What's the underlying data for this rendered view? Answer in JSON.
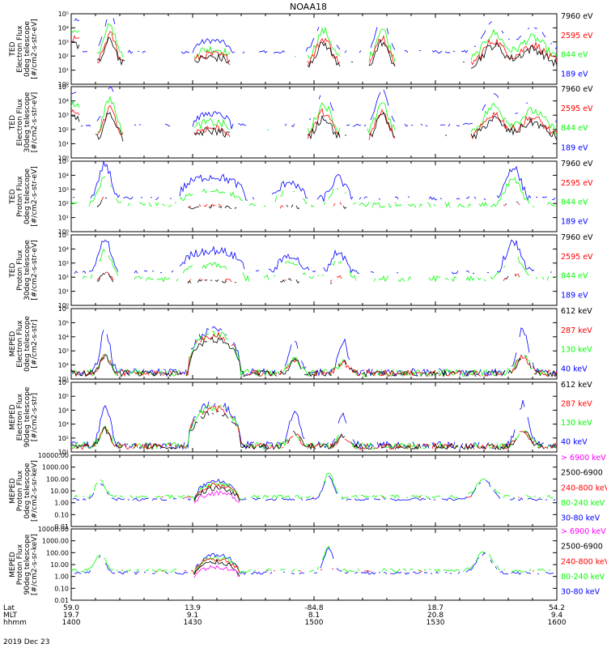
{
  "title": "NOAA18",
  "date": "2019 Dec 23",
  "footer": {
    "rows": [
      {
        "label": "Lat",
        "values": [
          "59.0",
          "13.9",
          "-84.8",
          "18.7",
          "54.2"
        ]
      },
      {
        "label": "MLT",
        "values": [
          "19.7",
          "9.1",
          "8.1",
          "20.8",
          "9.4"
        ]
      },
      {
        "label": "hhmm",
        "values": [
          "1400",
          "1430",
          "1500",
          "1530",
          "1600"
        ]
      }
    ]
  },
  "colors": {
    "blue": "#0000ff",
    "red": "#ff0000",
    "green": "#00ff00",
    "black": "#000000",
    "magenta": "#ff00ff"
  },
  "chart_data": [
    {
      "type": "line",
      "name": "ted-electron-0deg",
      "ylabel": [
        "TED",
        "Electron Flux",
        "0deg telescope",
        "[#/cm2-s-str-eV]"
      ],
      "scale": "log",
      "ylim": [
        1,
        100000
      ],
      "ticks": [
        "10⁰",
        "10¹",
        "10²",
        "10³",
        "10⁴",
        "10⁵"
      ],
      "legend": [
        {
          "text": "7960 eV",
          "color": "#000000"
        },
        {
          "text": "2595 eV",
          "color": "#ff0000"
        },
        {
          "text": "844 eV",
          "color": "#00ff00"
        },
        {
          "text": "189 eV",
          "color": "#0000ff"
        }
      ]
    },
    {
      "type": "line",
      "name": "ted-electron-30deg",
      "ylabel": [
        "TED",
        "Electron Flux",
        "30deg telescope",
        "[#/cm2-s-str-eV]"
      ],
      "scale": "log",
      "ylim": [
        1,
        100000
      ],
      "ticks": [
        "10⁰",
        "10¹",
        "10²",
        "10³",
        "10⁴",
        "10⁵"
      ],
      "legend": [
        {
          "text": "7960 eV",
          "color": "#000000"
        },
        {
          "text": "2595 eV",
          "color": "#ff0000"
        },
        {
          "text": "844 eV",
          "color": "#00ff00"
        },
        {
          "text": "189 eV",
          "color": "#0000ff"
        }
      ]
    },
    {
      "type": "line",
      "name": "ted-proton-0deg",
      "ylabel": [
        "TED",
        "Proton Flux",
        "0deg telescope",
        "[#/cm2-s-str-eV]"
      ],
      "scale": "log",
      "ylim": [
        1,
        100000
      ],
      "ticks": [
        "10⁰",
        "10¹",
        "10²",
        "10³",
        "10⁴",
        "10⁵"
      ],
      "legend": [
        {
          "text": "7960 eV",
          "color": "#000000"
        },
        {
          "text": "2595 eV",
          "color": "#ff0000"
        },
        {
          "text": "844 eV",
          "color": "#00ff00"
        },
        {
          "text": "189 eV",
          "color": "#0000ff"
        }
      ]
    },
    {
      "type": "line",
      "name": "ted-proton-30deg",
      "ylabel": [
        "TED",
        "Proton Flux",
        "30deg telescope",
        "[#/cm2-s-str-eV]"
      ],
      "scale": "log",
      "ylim": [
        1,
        100000
      ],
      "ticks": [
        "10⁰",
        "10¹",
        "10²",
        "10³",
        "10⁴",
        "10⁵"
      ],
      "legend": [
        {
          "text": "7960 eV",
          "color": "#000000"
        },
        {
          "text": "2595 eV",
          "color": "#ff0000"
        },
        {
          "text": "844 eV",
          "color": "#00ff00"
        },
        {
          "text": "189 eV",
          "color": "#0000ff"
        }
      ]
    },
    {
      "type": "line",
      "name": "meped-electron-0deg",
      "ylabel": [
        "MEPED",
        "Electron Flux",
        "0deg telescope",
        "[#/cm2-s-str]"
      ],
      "scale": "log",
      "ylim": [
        10,
        1000000
      ],
      "ticks": [
        "10¹",
        "10²",
        "10³",
        "10⁴",
        "10⁵",
        "10⁶"
      ],
      "legend": [
        {
          "text": "612 keV",
          "color": "#000000"
        },
        {
          "text": "287 keV",
          "color": "#ff0000"
        },
        {
          "text": "130 keV",
          "color": "#00ff00"
        },
        {
          "text": "40 keV",
          "color": "#0000ff"
        }
      ]
    },
    {
      "type": "line",
      "name": "meped-electron-90deg",
      "ylabel": [
        "MEPED",
        "Electron Flux",
        "90deg telescope",
        "[#/cm2-s-str]"
      ],
      "scale": "log",
      "ylim": [
        10,
        1000000
      ],
      "ticks": [
        "10¹",
        "10²",
        "10³",
        "10⁴",
        "10⁵",
        "10⁶"
      ],
      "legend": [
        {
          "text": "612 keV",
          "color": "#000000"
        },
        {
          "text": "287 keV",
          "color": "#ff0000"
        },
        {
          "text": "130 keV",
          "color": "#00ff00"
        },
        {
          "text": "40 keV",
          "color": "#0000ff"
        }
      ]
    },
    {
      "type": "line",
      "name": "meped-proton-0deg",
      "ylabel": [
        "MEPED",
        "Proton Flux",
        "0deg telescope",
        "[#/cm2-s-sr-keV]"
      ],
      "scale": "log",
      "ylim": [
        0.01,
        10000
      ],
      "ticks": [
        "0.01",
        "0.10",
        "1.00",
        "10.00",
        "100.00",
        "1000.00",
        "10000.00"
      ],
      "legend": [
        {
          "text": "> 6900 keV",
          "color": "#ff00ff"
        },
        {
          "text": "2500-6900",
          "color": "#000000"
        },
        {
          "text": "240-800 keV",
          "color": "#ff0000"
        },
        {
          "text": "80-240 keV",
          "color": "#00ff00"
        },
        {
          "text": "30-80 keV",
          "color": "#0000ff"
        }
      ]
    },
    {
      "type": "line",
      "name": "meped-proton-90deg",
      "ylabel": [
        "MEPED",
        "Proton Flux",
        "90deg telescope",
        "[#/cm2-s-sr-keV]"
      ],
      "scale": "log",
      "ylim": [
        0.01,
        10000
      ],
      "ticks": [
        "0.01",
        "0.10",
        "1.00",
        "10.00",
        "100.00",
        "1000.00",
        "10000.00"
      ],
      "legend": [
        {
          "text": "> 6900 keV",
          "color": "#ff00ff"
        },
        {
          "text": "2500-6900",
          "color": "#000000"
        },
        {
          "text": "240-800 keV",
          "color": "#ff0000"
        },
        {
          "text": "80-240 keV",
          "color": "#00ff00"
        },
        {
          "text": "30-80 keV",
          "color": "#0000ff"
        }
      ]
    }
  ]
}
